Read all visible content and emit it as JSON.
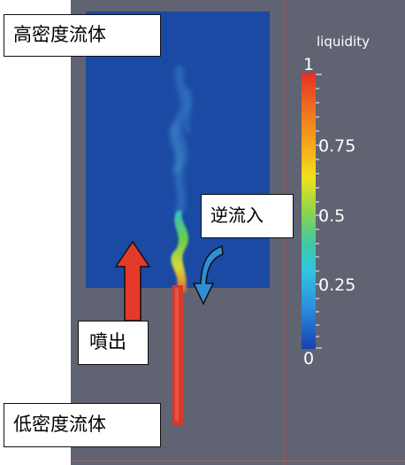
{
  "labels": {
    "high_density_fluid": "高密度流体",
    "low_density_fluid": "低密度流体",
    "backflow_inflow": "逆流入",
    "jet": "噴出"
  },
  "colorbar": {
    "title": "liquidity",
    "ticks": [
      "1",
      "0.75",
      "0.5",
      "0.25",
      "0"
    ],
    "colors": [
      "#e52e22",
      "#f6a21a",
      "#f0e21c",
      "#7fd24a",
      "#31c3df",
      "#2a8fe0",
      "#1a3fb0"
    ]
  },
  "colors": {
    "viewport_background": "#5f6372",
    "high_density_region": "#1a4aa3",
    "jet_core": "#d9382c",
    "jet_arrow": "#e53a2a",
    "backflow_arrow": "#2f8fd6"
  }
}
